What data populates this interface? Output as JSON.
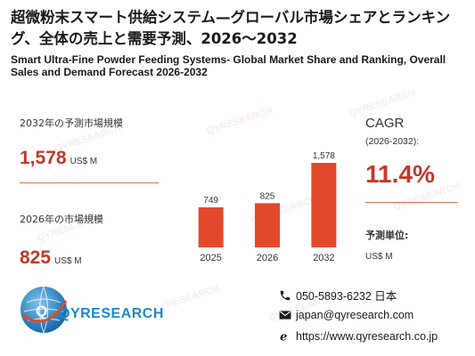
{
  "title": {
    "jp": "超微粉末スマート供給システム—グローバル市場シェアとランキング、全体の売上と需要予測、2026～2032",
    "en": "Smart Ultra-Fine Powder Feeding Systems- Global Market Share and Ranking, Overall Sales and Demand Forecast 2026-2032"
  },
  "forecast": {
    "label": "2032年の予測市場規模",
    "value": "1,578",
    "unit": "US$ M"
  },
  "current": {
    "label": "2026年の市場規模",
    "value": "825",
    "unit": "US$ M"
  },
  "cagr": {
    "label": "CAGR",
    "period": "(2026-2032):",
    "value": "11.4%"
  },
  "unit_info": {
    "label": "予測単位:",
    "value": "US$ M"
  },
  "chart_data": {
    "type": "bar",
    "categories": [
      "2025",
      "2026",
      "2032"
    ],
    "values": [
      749,
      825,
      1578
    ],
    "data_labels": [
      "749",
      "825",
      "1,578"
    ],
    "title": "",
    "xlabel": "",
    "ylabel": "",
    "ylim": [
      0,
      1578
    ],
    "grid": false,
    "legend": "none",
    "color": "#e2492b"
  },
  "brand": {
    "logo_text": "QYRESEARCH",
    "watermark": "QYRESEARCH",
    "color": "#1e88c8"
  },
  "contact": {
    "phone": "050-5893-6232 日本",
    "email": "japan@qyresearch.com",
    "website": "https://www.qyresearch.co.jp"
  }
}
